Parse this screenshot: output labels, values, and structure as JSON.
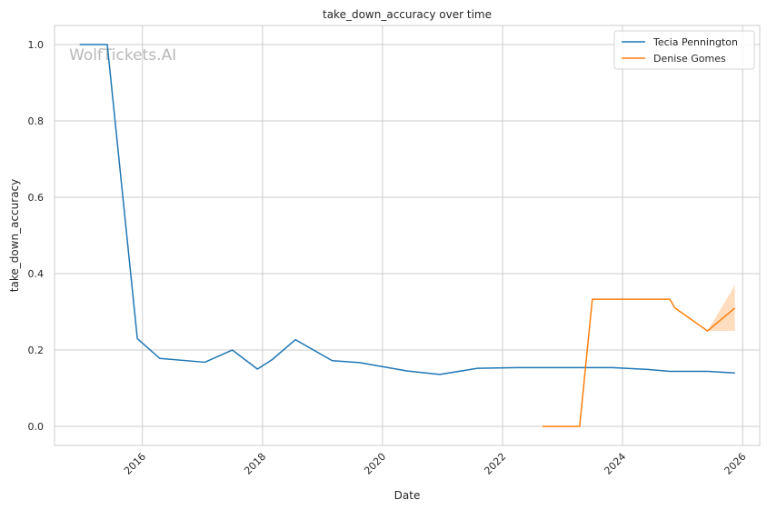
{
  "chart_data": {
    "type": "line",
    "title": "take_down_accuracy over time",
    "xlabel": "Date",
    "ylabel": "take_down_accuracy",
    "xlim": [
      "2014-07-15",
      "2026-04-15"
    ],
    "ylim": [
      -0.05,
      1.05
    ],
    "x_ticks": [
      "2016",
      "2018",
      "2020",
      "2022",
      "2024",
      "2026"
    ],
    "y_ticks": [
      "0.0",
      "0.2",
      "0.4",
      "0.6",
      "0.8",
      "1.0"
    ],
    "grid": true,
    "legend_position": "top-right",
    "watermark": "WolfTickets.AI",
    "series": [
      {
        "name": "Tecia Pennington",
        "color": "#1f77b4",
        "points": [
          {
            "date": "2014-12-15",
            "value": 1.0
          },
          {
            "date": "2015-06-01",
            "value": 1.0
          },
          {
            "date": "2015-12-01",
            "value": 0.23
          },
          {
            "date": "2016-04-15",
            "value": 0.178
          },
          {
            "date": "2017-01-15",
            "value": 0.168
          },
          {
            "date": "2017-07-01",
            "value": 0.2
          },
          {
            "date": "2017-12-01",
            "value": 0.15
          },
          {
            "date": "2018-03-01",
            "value": 0.175
          },
          {
            "date": "2018-07-20",
            "value": 0.227
          },
          {
            "date": "2019-03-01",
            "value": 0.172
          },
          {
            "date": "2019-08-15",
            "value": 0.167
          },
          {
            "date": "2020-06-01",
            "value": 0.145
          },
          {
            "date": "2020-12-15",
            "value": 0.136
          },
          {
            "date": "2021-08-01",
            "value": 0.152
          },
          {
            "date": "2022-04-01",
            "value": 0.154
          },
          {
            "date": "2023-11-01",
            "value": 0.154
          },
          {
            "date": "2024-06-01",
            "value": 0.149
          },
          {
            "date": "2024-10-15",
            "value": 0.144
          },
          {
            "date": "2025-06-01",
            "value": 0.144
          },
          {
            "date": "2025-11-15",
            "value": 0.14
          }
        ]
      },
      {
        "name": "Denise Gomes",
        "color": "#ff7f0e",
        "band_color": "#ffd7b3",
        "points": [
          {
            "date": "2022-09-01",
            "value": 0.0
          },
          {
            "date": "2023-04-15",
            "value": 0.0
          },
          {
            "date": "2023-07-01",
            "value": 0.333
          },
          {
            "date": "2024-10-15",
            "value": 0.333
          },
          {
            "date": "2024-11-15",
            "value": 0.31
          },
          {
            "date": "2025-06-01",
            "value": 0.25
          },
          {
            "date": "2025-11-15",
            "value": 0.31
          }
        ],
        "band": [
          {
            "date": "2025-06-01",
            "low": 0.25,
            "high": 0.25
          },
          {
            "date": "2025-11-15",
            "low": 0.25,
            "high": 0.37
          }
        ]
      }
    ]
  }
}
